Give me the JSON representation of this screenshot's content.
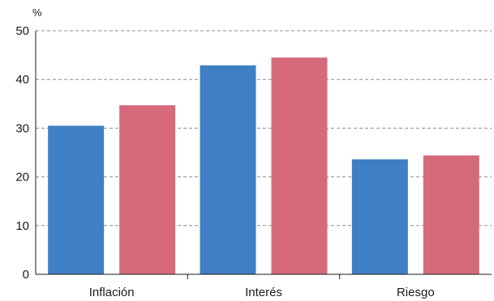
{
  "chart_data": {
    "type": "bar",
    "unit_label": "%",
    "categories": [
      "Inflación",
      "Interés",
      "Riesgo"
    ],
    "series": [
      {
        "color": "#3f7fc4",
        "values": [
          30.5,
          42.9,
          23.6
        ]
      },
      {
        "color": "#d66a7a",
        "values": [
          34.7,
          44.5,
          24.4
        ]
      }
    ],
    "ylim": [
      0,
      50
    ],
    "y_ticks": [
      0,
      10,
      20,
      30,
      40,
      50
    ],
    "y_tick_labels": [
      "0",
      "10",
      "20",
      "30",
      "40",
      "50"
    ],
    "grid": true,
    "grid_style": "dashed"
  }
}
